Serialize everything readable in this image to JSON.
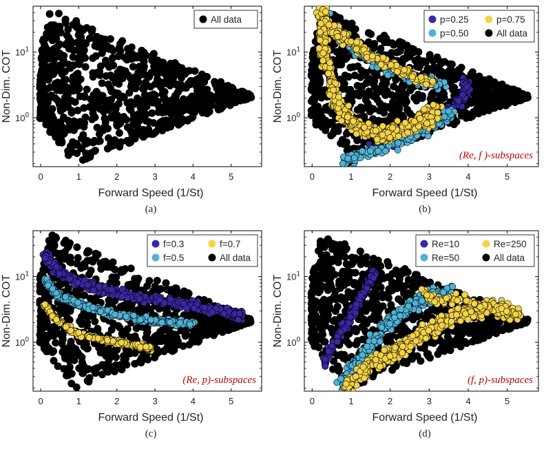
{
  "figure": {
    "colors": {
      "all": "#000000",
      "purple": "#3a27a6",
      "cyan": "#4fb3d6",
      "yellow": "#f4d347"
    },
    "panels": [
      {
        "caption": "(a)",
        "xlabel": "Forward Speed (1/St)",
        "ylabel": "Non-Dim. COT",
        "annotation": "",
        "legend": [
          {
            "label": "All data",
            "color": "#000000"
          }
        ],
        "series": []
      },
      {
        "caption": "(b)",
        "xlabel": "Forward Speed (1/St)",
        "ylabel": "Non-Dim. COT",
        "annotation": "(Re, f )-subspaces",
        "legend": [
          {
            "label": "p=0.25",
            "color": "#3a27a6"
          },
          {
            "label": "p=0.75",
            "color": "#f4d347"
          },
          {
            "label": "p=0.50",
            "color": "#4fb3d6"
          },
          {
            "label": "All data",
            "color": "#000000"
          }
        ],
        "series": [
          "p=0.25",
          "p=0.50",
          "p=0.75"
        ]
      },
      {
        "caption": "(c)",
        "xlabel": "Forward Speed (1/St)",
        "ylabel": "Non-Dim. COT",
        "annotation": "(Re, p)-subspaces",
        "legend": [
          {
            "label": "f=0.3",
            "color": "#3a27a6"
          },
          {
            "label": "f=0.7",
            "color": "#f4d347"
          },
          {
            "label": "f=0.5",
            "color": "#4fb3d6"
          },
          {
            "label": "All data",
            "color": "#000000"
          }
        ],
        "series": [
          "f=0.3",
          "f=0.5",
          "f=0.7"
        ]
      },
      {
        "caption": "(d)",
        "xlabel": "Forward Speed (1/St)",
        "ylabel": "Non-Dim. COT",
        "annotation": "(f, p)-subspaces",
        "legend": [
          {
            "label": "Re=10",
            "color": "#3a27a6"
          },
          {
            "label": "Re=250",
            "color": "#f4d347"
          },
          {
            "label": "Re=50",
            "color": "#4fb3d6"
          },
          {
            "label": "All data",
            "color": "#000000"
          }
        ],
        "series": [
          "Re=10",
          "Re=50",
          "Re=250"
        ]
      }
    ]
  },
  "chart_data": [
    {
      "type": "scatter",
      "xlabel": "Forward Speed (1/St)",
      "ylabel": "Non-Dim. COT",
      "xlim": [
        -0.2,
        5.8
      ],
      "ylim": [
        0.18,
        50
      ],
      "yscale": "log",
      "xticks": [
        "0",
        "1",
        "2",
        "3",
        "4",
        "5"
      ],
      "yticks": [
        "10^0",
        "10^1"
      ],
      "legend": "top-right",
      "series": [
        {
          "name": "All data",
          "color": "#000000",
          "x": [
            0.25,
            0.1,
            0.05,
            0.15,
            0.6,
            0.9,
            1.0,
            1.3,
            2.0,
            3.0,
            4.0,
            5.0,
            5.5,
            4.5,
            3.5,
            2.5,
            1.5,
            0.8,
            0.4,
            1.1,
            1.8,
            2.8,
            3.8
          ],
          "y": [
            45,
            20,
            5,
            1.2,
            0.3,
            0.22,
            0.2,
            0.24,
            0.3,
            0.5,
            0.9,
            1.6,
            2.0,
            3.2,
            4.5,
            6,
            10,
            25,
            35,
            3,
            2.5,
            2.2,
            2.5
          ]
        }
      ]
    },
    {
      "type": "scatter",
      "xlabel": "Forward Speed (1/St)",
      "ylabel": "Non-Dim. COT",
      "xlim": [
        -0.2,
        5.8
      ],
      "ylim": [
        0.18,
        50
      ],
      "yscale": "log",
      "xticks": [
        "0",
        "1",
        "2",
        "3",
        "4",
        "5"
      ],
      "yticks": [
        "10^0",
        "10^1"
      ],
      "legend": "top-right",
      "annotation": "(Re, f )-subspaces",
      "series": [
        {
          "name": "All data",
          "color": "#000000",
          "x": [
            0.25,
            0.1,
            0.05,
            0.15,
            0.6,
            0.9,
            1.0,
            1.3,
            2.0,
            3.0,
            4.0,
            5.0,
            5.5,
            4.5,
            3.5,
            2.5,
            1.5,
            0.8,
            0.4
          ],
          "y": [
            45,
            20,
            5,
            1.2,
            0.3,
            0.22,
            0.2,
            0.24,
            0.3,
            0.5,
            0.9,
            1.6,
            2.0,
            3.2,
            4.5,
            6,
            10,
            25,
            35
          ]
        },
        {
          "name": "p=0.25",
          "color": "#3a27a6",
          "x": [
            1.5,
            2.0,
            2.5,
            3.0,
            3.3,
            3.6,
            3.9,
            4.1,
            3.7,
            3.2,
            2.6,
            2.0
          ],
          "y": [
            0.35,
            0.45,
            0.6,
            0.8,
            1.0,
            1.4,
            2.4,
            3.4,
            4.0,
            3.0,
            2.0,
            1.2
          ]
        },
        {
          "name": "p=0.50",
          "color": "#4fb3d6",
          "x": [
            0.8,
            1.0,
            1.3,
            1.8,
            2.3,
            2.8,
            3.2,
            3.5,
            3.0,
            2.5,
            2.0,
            1.5,
            1.0
          ],
          "y": [
            0.2,
            0.22,
            0.3,
            0.35,
            0.45,
            0.6,
            0.8,
            1.1,
            1.5,
            2.2,
            3.5,
            6,
            12
          ]
        },
        {
          "name": "p=0.75",
          "color": "#f4d347",
          "x": [
            0.2,
            0.25,
            0.3,
            0.5,
            0.8,
            1.0,
            1.5,
            2.0,
            2.5,
            3.0,
            3.3,
            2.8,
            2.2,
            1.5,
            1.0,
            0.5,
            0.3
          ],
          "y": [
            45,
            30,
            12,
            4,
            1.2,
            0.7,
            0.5,
            0.55,
            0.7,
            1.0,
            1.5,
            3.5,
            6,
            12,
            20,
            30,
            40
          ]
        }
      ]
    },
    {
      "type": "scatter",
      "xlabel": "Forward Speed (1/St)",
      "ylabel": "Non-Dim. COT",
      "xlim": [
        -0.2,
        5.8
      ],
      "ylim": [
        0.18,
        50
      ],
      "yscale": "log",
      "xticks": [
        "0",
        "1",
        "2",
        "3",
        "4",
        "5"
      ],
      "yticks": [
        "10^0",
        "10^1"
      ],
      "legend": "top-right",
      "annotation": "(Re, p)-subspaces",
      "series": [
        {
          "name": "All data",
          "color": "#000000",
          "x": [
            0.25,
            0.1,
            0.05,
            0.15,
            0.6,
            0.9,
            1.0,
            1.3,
            2.0,
            3.0,
            4.0,
            5.0,
            5.5,
            4.5,
            3.5,
            2.5,
            1.5,
            0.8,
            0.4
          ],
          "y": [
            45,
            20,
            5,
            1.2,
            0.3,
            0.22,
            0.2,
            0.24,
            0.3,
            0.5,
            0.9,
            1.6,
            2.0,
            3.2,
            4.5,
            6,
            10,
            25,
            35
          ]
        },
        {
          "name": "f=0.3",
          "color": "#3a27a6",
          "x": [
            0.1,
            0.3,
            0.6,
            1.0,
            1.5,
            2.0,
            2.5,
            3.0,
            3.5,
            4.0,
            4.5,
            5.0,
            5.3
          ],
          "y": [
            20,
            14,
            10,
            8,
            6.5,
            5.5,
            5,
            4.5,
            4,
            3.6,
            3.2,
            2.8,
            2.5
          ]
        },
        {
          "name": "f=0.5",
          "color": "#4fb3d6",
          "x": [
            0.1,
            0.3,
            0.6,
            1.0,
            1.5,
            2.0,
            2.5,
            3.0,
            3.5,
            4.0
          ],
          "y": [
            9,
            6,
            4.5,
            3.6,
            3.0,
            2.6,
            2.3,
            2.1,
            2.0,
            1.9
          ]
        },
        {
          "name": "f=0.7",
          "color": "#f4d347",
          "x": [
            0.1,
            0.3,
            0.6,
            1.0,
            1.5,
            2.0,
            2.5,
            2.9
          ],
          "y": [
            3.8,
            2.5,
            1.7,
            1.3,
            1.1,
            1.0,
            0.9,
            0.8
          ]
        }
      ]
    },
    {
      "type": "scatter",
      "xlabel": "Forward Speed (1/St)",
      "ylabel": "Non-Dim. COT",
      "xlim": [
        -0.2,
        5.8
      ],
      "ylim": [
        0.18,
        50
      ],
      "yscale": "log",
      "xticks": [
        "0",
        "1",
        "2",
        "3",
        "4",
        "5"
      ],
      "yticks": [
        "10^0",
        "10^1"
      ],
      "legend": "top-right",
      "annotation": "(f, p)-subspaces",
      "series": [
        {
          "name": "All data",
          "color": "#000000",
          "x": [
            0.25,
            0.1,
            0.05,
            0.15,
            0.6,
            0.9,
            1.0,
            1.3,
            2.0,
            3.0,
            4.0,
            5.0,
            5.5,
            4.5,
            3.5,
            2.5,
            1.5,
            0.8,
            0.4
          ],
          "y": [
            45,
            20,
            5,
            1.2,
            0.3,
            0.22,
            0.2,
            0.24,
            0.3,
            0.5,
            0.9,
            1.6,
            2.0,
            3.2,
            4.5,
            6,
            10,
            25,
            35
          ]
        },
        {
          "name": "Re=10",
          "color": "#3a27a6",
          "x": [
            0.3,
            0.5,
            0.7,
            0.9,
            1.1,
            1.3,
            1.5,
            1.6
          ],
          "y": [
            0.5,
            0.8,
            1.3,
            2.0,
            3.2,
            5,
            8,
            12
          ]
        },
        {
          "name": "Re=50",
          "color": "#4fb3d6",
          "x": [
            0.7,
            0.9,
            1.2,
            1.6,
            2.0,
            2.5,
            3.0,
            3.5,
            3.8
          ],
          "y": [
            0.22,
            0.3,
            0.6,
            1.2,
            2.0,
            3.5,
            5,
            6,
            4
          ]
        },
        {
          "name": "Re=250",
          "color": "#f4d347",
          "x": [
            0.9,
            1.2,
            1.6,
            2.0,
            2.5,
            3.0,
            3.5,
            4.0,
            4.5,
            5.0,
            5.4
          ],
          "y": [
            0.2,
            0.3,
            0.5,
            0.7,
            1.0,
            1.5,
            2.2,
            3.0,
            3.5,
            3.0,
            2.5
          ]
        }
      ]
    }
  ]
}
